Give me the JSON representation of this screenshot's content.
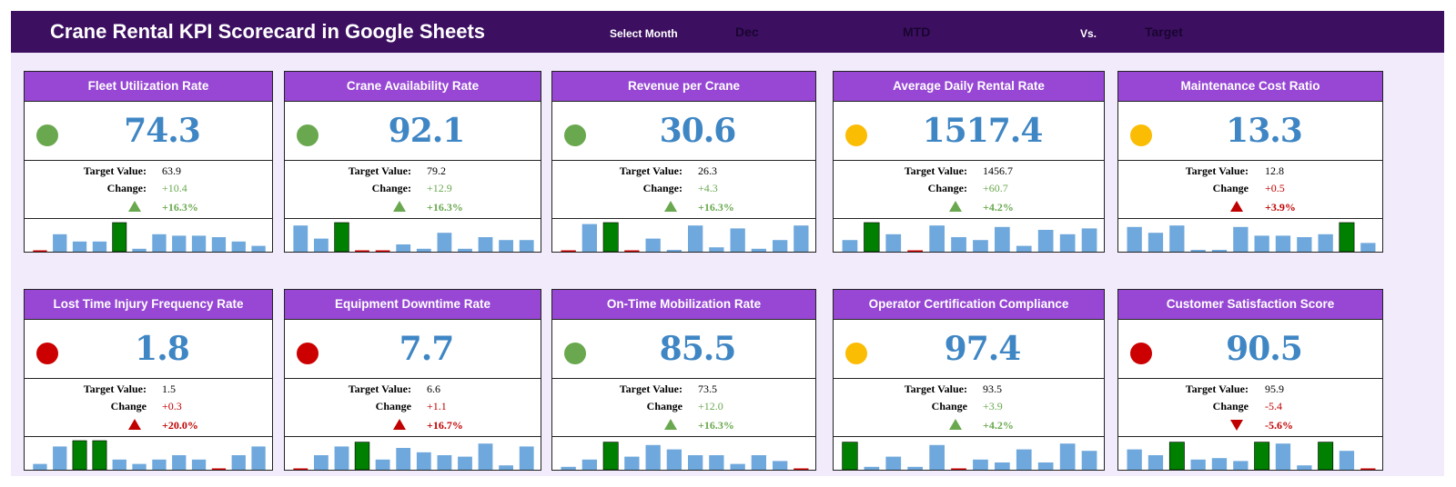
{
  "header": {
    "title": "Crane Rental KPI Scorecard in Google Sheets",
    "select_month_label": "Select Month",
    "month": "Dec",
    "period": "MTD",
    "vs_label": "Vs.",
    "comparison": "Target"
  },
  "colors": {
    "green": "#6aa84f",
    "yellow": "#fbbc04",
    "red": "#cc0000",
    "bar": "#6fa8dc",
    "bar_highlight": "#008000",
    "bar_low": "#cc0000",
    "good_text": "#6aa84f",
    "bad_text": "#c00000"
  },
  "labels": {
    "target": "Target Value:"
  },
  "kpis": [
    {
      "title": "Fleet Utilization Rate",
      "status": "green",
      "value": "74.3",
      "target": "63.9",
      "change_label": "Change:",
      "change": "+10.4",
      "pct": "+16.3%",
      "direction": "up",
      "good": true,
      "spark": [
        0,
        6,
        3.5,
        3.5,
        10,
        1,
        6,
        5.5,
        5.5,
        5,
        3.5,
        2
      ]
    },
    {
      "title": "Crane Availability Rate",
      "status": "green",
      "value": "92.1",
      "target": "79.2",
      "change_label": "Change:",
      "change": "+12.9",
      "pct": "+16.3%",
      "direction": "up",
      "good": true,
      "spark": [
        9,
        4.5,
        10,
        0,
        0,
        2.5,
        1,
        6.5,
        1,
        5,
        4,
        4
      ]
    },
    {
      "title": "Revenue per Crane",
      "status": "green",
      "value": "30.6",
      "target": "26.3",
      "change_label": "Change:",
      "change": "+4.3",
      "pct": "+16.3%",
      "direction": "up",
      "good": true,
      "spark": [
        0,
        9.5,
        10,
        0,
        4.5,
        0.5,
        9,
        1.5,
        8,
        1,
        4,
        9
      ]
    },
    {
      "title": "Average Daily Rental Rate",
      "status": "yellow",
      "value": "1517.4",
      "target": "1456.7",
      "change_label": "Change:",
      "change": "+60.7",
      "pct": "+4.2%",
      "direction": "up",
      "good": true,
      "spark": [
        4,
        10,
        6,
        0,
        9,
        5,
        4,
        8.5,
        2,
        7.5,
        6,
        8
      ]
    },
    {
      "title": "Maintenance Cost Ratio",
      "status": "yellow",
      "value": "13.3",
      "target": "12.8",
      "change_label": "Change",
      "change": "+0.5",
      "pct": "+3.9%",
      "direction": "up",
      "good": false,
      "spark": [
        8.5,
        6.5,
        9,
        0.5,
        0.5,
        8.5,
        5.5,
        5.5,
        5,
        6,
        10,
        3
      ]
    },
    {
      "title": "Lost Time Injury Frequency Rate",
      "status": "red",
      "value": "1.8",
      "target": "1.5",
      "change_label": "Change",
      "change": "+0.3",
      "pct": "+20.0%",
      "direction": "up",
      "good": false,
      "spark": [
        2,
        8,
        10,
        10,
        3.5,
        2,
        3.5,
        5,
        3.5,
        0,
        5,
        8
      ]
    },
    {
      "title": "Equipment Downtime Rate",
      "status": "red",
      "value": "7.7",
      "target": "6.6",
      "change_label": "Change",
      "change": "+1.1",
      "pct": "+16.7%",
      "direction": "up",
      "good": false,
      "spark": [
        0,
        5,
        8,
        9.5,
        3.5,
        7.5,
        6,
        5,
        4.5,
        9,
        1.5,
        8
      ]
    },
    {
      "title": "On-Time Mobilization Rate",
      "status": "green",
      "value": "85.5",
      "target": "73.5",
      "change_label": "Change",
      "change": "+12.0",
      "pct": "+16.3%",
      "direction": "up",
      "good": true,
      "spark": [
        1,
        3.5,
        9.5,
        4.5,
        8.5,
        7,
        5,
        5,
        2,
        5,
        3,
        0
      ]
    },
    {
      "title": "Operator Certification Compliance",
      "status": "yellow",
      "value": "97.4",
      "target": "93.5",
      "change_label": "Change",
      "change": "+3.9",
      "pct": "+4.2%",
      "direction": "up",
      "good": true,
      "spark": [
        9.5,
        1,
        4.5,
        1,
        8.5,
        0,
        3.5,
        2.5,
        7,
        2.5,
        9,
        6.5
      ]
    },
    {
      "title": "Customer Satisfaction Score",
      "status": "red",
      "value": "90.5",
      "target": "95.9",
      "change_label": "Change",
      "change": "-5.4",
      "pct": "-5.6%",
      "direction": "down",
      "good": false,
      "spark": [
        7,
        5,
        9.5,
        3.5,
        4,
        3,
        9.5,
        9,
        1.5,
        9.5,
        6.5,
        0
      ]
    }
  ]
}
